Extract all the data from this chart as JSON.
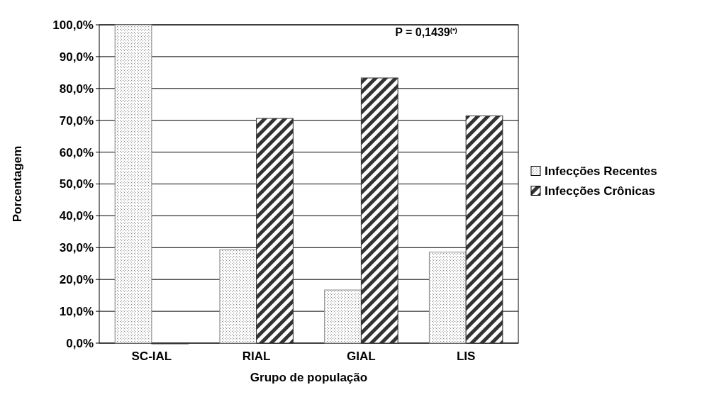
{
  "chart_data": {
    "type": "bar",
    "xlabel": "Grupo de população",
    "ylabel": "Porcentagem",
    "categories": [
      "SC-IAL",
      "RIAL",
      "GIAL",
      "LIS"
    ],
    "series": [
      {
        "name": "Infecções Recentes",
        "color": "#8c8c8c",
        "values": [
          100,
          29.4,
          16.7,
          28.6
        ]
      },
      {
        "name": "Infecções Crônicas",
        "color": "#333333",
        "values": [
          0,
          70.6,
          83.3,
          71.4
        ]
      }
    ],
    "ylim": [
      0,
      100
    ],
    "yticks": [
      {
        "value": 0,
        "label": "0,0%"
      },
      {
        "value": 10,
        "label": "10,0%"
      },
      {
        "value": 20,
        "label": "20,0%"
      },
      {
        "value": 30,
        "label": "30,0%"
      },
      {
        "value": 40,
        "label": "40,0%"
      },
      {
        "value": 50,
        "label": "50,0%"
      },
      {
        "value": 60,
        "label": "60,0%"
      },
      {
        "value": 70,
        "label": "70,0%"
      },
      {
        "value": 80,
        "label": "80,0%"
      },
      {
        "value": 90,
        "label": "90,0%"
      },
      {
        "value": 100,
        "label": "100,0%"
      }
    ],
    "grid": "y",
    "legend": "right",
    "annotations": [
      "P = 0,1439$^{(*)}$"
    ]
  }
}
